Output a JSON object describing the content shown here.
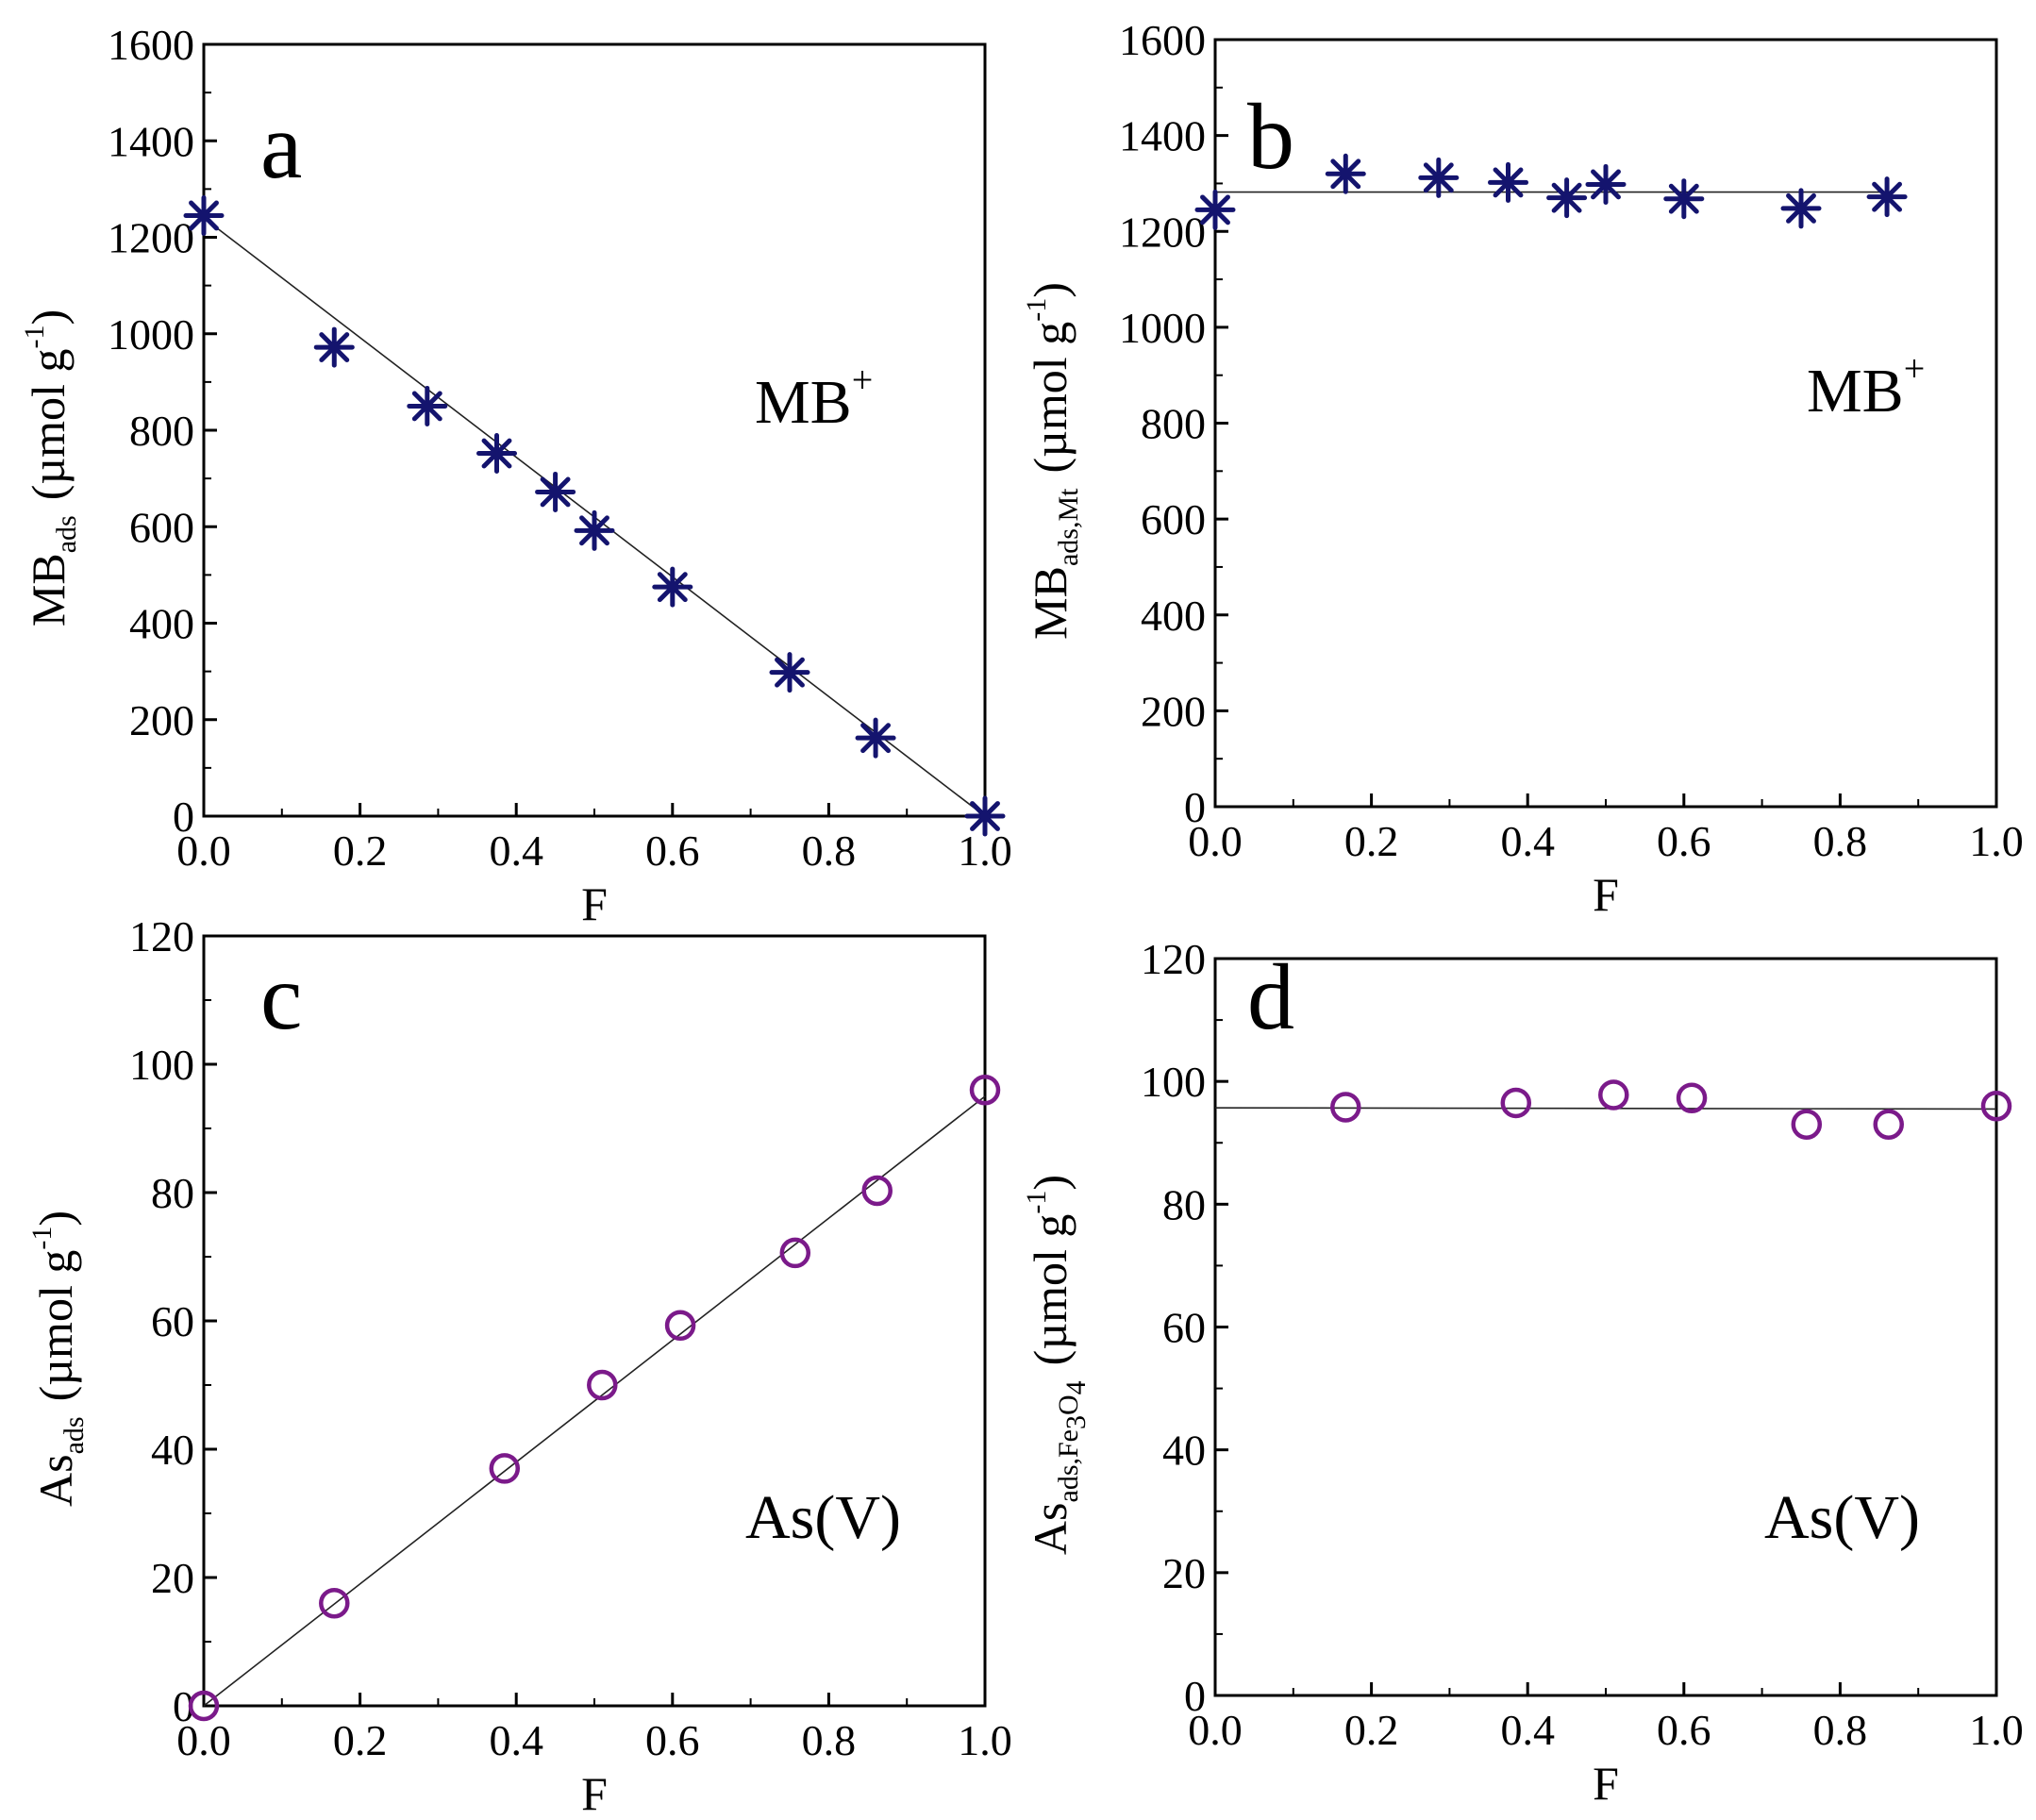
{
  "chart_data": [
    {
      "panel": "a",
      "type": "scatter",
      "panel_label": "a",
      "series_label": "MB",
      "series_label_sup": "+",
      "xlabel": "F",
      "ylabel_main": "MB",
      "ylabel_sub": "ads",
      "ylabel_unit": "(µmol g",
      "ylabel_unit_sup": "-1",
      "ylabel_close": ")",
      "xlim": [
        0,
        1.0
      ],
      "ylim": [
        0,
        1600
      ],
      "xticks": [
        "0.0",
        "0.2",
        "0.4",
        "0.6",
        "0.8",
        "1.0"
      ],
      "yticks": [
        "0",
        "200",
        "400",
        "600",
        "800",
        "1000",
        "1200",
        "1400",
        "1600"
      ],
      "marker": "asterisk",
      "color": "#14146e",
      "points": [
        {
          "x": 0.0,
          "y": 1245
        },
        {
          "x": 0.167,
          "y": 972
        },
        {
          "x": 0.286,
          "y": 850
        },
        {
          "x": 0.375,
          "y": 752
        },
        {
          "x": 0.45,
          "y": 672
        },
        {
          "x": 0.5,
          "y": 592
        },
        {
          "x": 0.6,
          "y": 475
        },
        {
          "x": 0.75,
          "y": 298
        },
        {
          "x": 0.86,
          "y": 162
        },
        {
          "x": 1.0,
          "y": 0
        }
      ],
      "fit_line": {
        "x": [
          0.0,
          1.0
        ],
        "y": [
          1240,
          0
        ]
      }
    },
    {
      "panel": "b",
      "type": "scatter",
      "panel_label": "b",
      "series_label": "MB",
      "series_label_sup": "+",
      "xlabel": "F",
      "ylabel_main": "MB",
      "ylabel_sub": "ads,Mt",
      "ylabel_unit": "(µmol g",
      "ylabel_unit_sup": "-1",
      "ylabel_close": ")",
      "xlim": [
        0,
        1.0
      ],
      "ylim": [
        0,
        1600
      ],
      "xticks": [
        "0.0",
        "0.2",
        "0.4",
        "0.6",
        "0.8",
        "1.0"
      ],
      "yticks": [
        "0",
        "200",
        "400",
        "600",
        "800",
        "1000",
        "1200",
        "1400",
        "1600"
      ],
      "marker": "asterisk",
      "color": "#14146e",
      "points": [
        {
          "x": 0.0,
          "y": 1245
        },
        {
          "x": 0.167,
          "y": 1320
        },
        {
          "x": 0.286,
          "y": 1312
        },
        {
          "x": 0.375,
          "y": 1302
        },
        {
          "x": 0.45,
          "y": 1270
        },
        {
          "x": 0.5,
          "y": 1298
        },
        {
          "x": 0.6,
          "y": 1268
        },
        {
          "x": 0.75,
          "y": 1248
        },
        {
          "x": 0.86,
          "y": 1272
        }
      ],
      "fit_line": {
        "x": [
          0.0,
          0.86
        ],
        "y": [
          1282,
          1282
        ]
      }
    },
    {
      "panel": "c",
      "type": "scatter",
      "panel_label": "c",
      "series_label": "As(V)",
      "series_label_sup": "",
      "xlabel": "F",
      "ylabel_main": "As",
      "ylabel_sub": "ads",
      "ylabel_unit": "(µmol g",
      "ylabel_unit_sup": "-1",
      "ylabel_close": ")",
      "xlim": [
        0,
        1.0
      ],
      "ylim": [
        0,
        120
      ],
      "xticks": [
        "0.0",
        "0.2",
        "0.4",
        "0.6",
        "0.8",
        "1.0"
      ],
      "yticks": [
        "0",
        "20",
        "40",
        "60",
        "80",
        "100",
        "120"
      ],
      "marker": "circle",
      "color": "#7b1a8a",
      "points": [
        {
          "x": 0.0,
          "y": 0
        },
        {
          "x": 0.167,
          "y": 16
        },
        {
          "x": 0.385,
          "y": 37
        },
        {
          "x": 0.51,
          "y": 50
        },
        {
          "x": 0.61,
          "y": 59.3
        },
        {
          "x": 0.757,
          "y": 70.6
        },
        {
          "x": 0.862,
          "y": 80.3
        },
        {
          "x": 1.0,
          "y": 96
        }
      ],
      "fit_line": {
        "x": [
          0.0,
          1.0
        ],
        "y": [
          0,
          95
        ]
      }
    },
    {
      "panel": "d",
      "type": "scatter",
      "panel_label": "d",
      "series_label": "As(V)",
      "series_label_sup": "",
      "xlabel": "F",
      "ylabel_main": "As",
      "ylabel_sub": "ads,Fe",
      "ylabel_sub2": "3",
      "ylabel_sub3": "O",
      "ylabel_sub4": "4",
      "ylabel_unit": "(µmol g",
      "ylabel_unit_sup": "-1",
      "ylabel_close": ")",
      "xlim": [
        0,
        1.0
      ],
      "ylim": [
        0,
        120
      ],
      "xticks": [
        "0.0",
        "0.2",
        "0.4",
        "0.6",
        "0.8",
        "1.0"
      ],
      "yticks": [
        "0",
        "20",
        "40",
        "60",
        "80",
        "100",
        "120"
      ],
      "marker": "circle",
      "color": "#7b1a8a",
      "points": [
        {
          "x": 0.167,
          "y": 95.8
        },
        {
          "x": 0.385,
          "y": 96.5
        },
        {
          "x": 0.51,
          "y": 97.8
        },
        {
          "x": 0.61,
          "y": 97.3
        },
        {
          "x": 0.757,
          "y": 93
        },
        {
          "x": 0.862,
          "y": 93
        },
        {
          "x": 1.0,
          "y": 96
        }
      ],
      "fit_line": {
        "x": [
          0.0,
          1.0
        ],
        "y": [
          95.7,
          95.5
        ]
      }
    }
  ]
}
